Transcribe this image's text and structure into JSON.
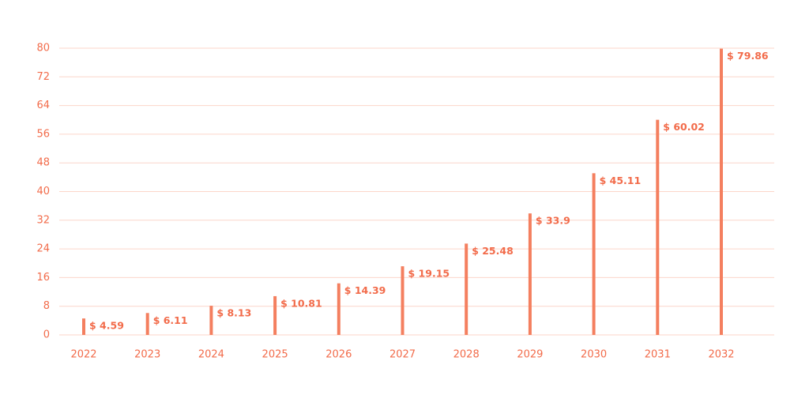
{
  "chart_data": {
    "type": "bar",
    "categories": [
      "2022",
      "2023",
      "2024",
      "2025",
      "2026",
      "2027",
      "2028",
      "2029",
      "2030",
      "2031",
      "2032"
    ],
    "values": [
      4.59,
      6.11,
      8.13,
      10.81,
      14.39,
      19.15,
      25.48,
      33.9,
      45.11,
      60.02,
      79.86
    ],
    "value_labels": [
      "$ 4.59",
      "$ 6.11",
      "$ 8.13",
      "$ 10.81",
      "$ 14.39",
      "$ 19.15",
      "$ 25.48",
      "$ 33.9",
      "$ 45.11",
      "$ 60.02",
      "$ 79.86"
    ],
    "color": "#f47f5f",
    "ylim": [
      0,
      80
    ],
    "yticks": [
      0,
      8,
      16,
      24,
      32,
      40,
      48,
      56,
      64,
      72,
      80
    ],
    "grid": true
  }
}
